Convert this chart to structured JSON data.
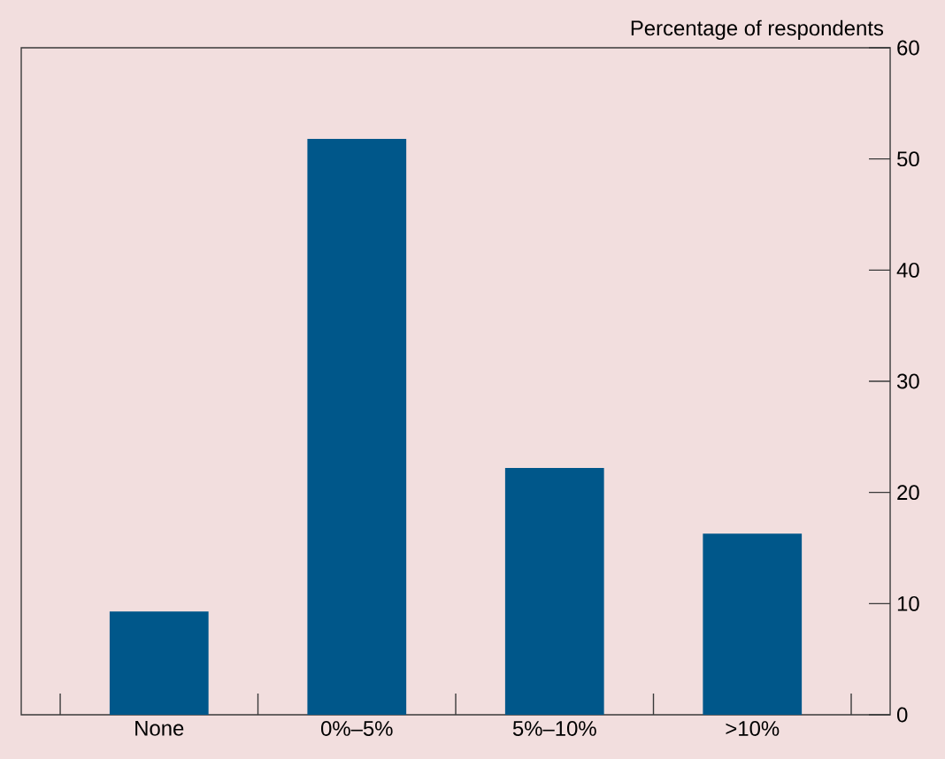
{
  "chart_data": {
    "type": "bar",
    "ylabel": "Percentage of respondents",
    "categories": [
      "None",
      "0%–5%",
      "5%–10%",
      ">10%"
    ],
    "values": [
      9.3,
      51.8,
      22.2,
      16.3
    ],
    "color": "#00578a",
    "ylim": [
      0,
      60
    ],
    "yticks": [
      0,
      10,
      20,
      30,
      40,
      50,
      60
    ]
  }
}
